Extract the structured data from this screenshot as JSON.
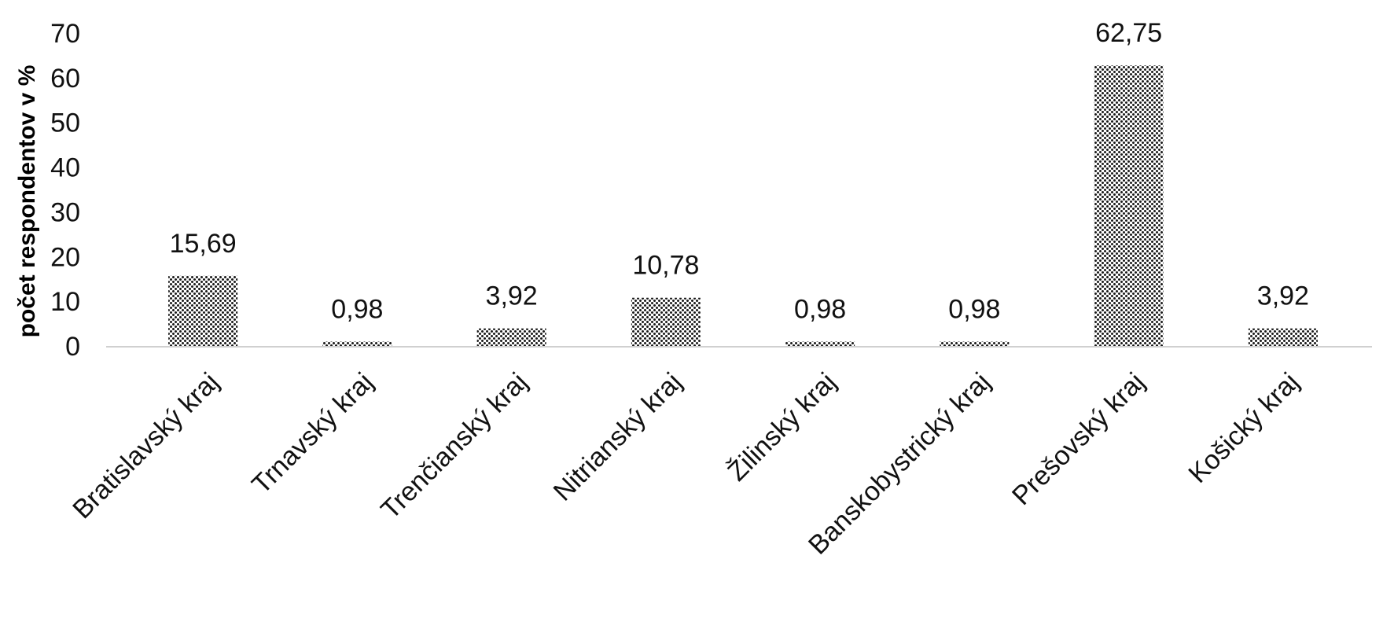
{
  "chart_data": {
    "type": "bar",
    "title": "",
    "xlabel": "",
    "ylabel": "počet respondentov v %",
    "ylim": [
      0,
      70
    ],
    "yticks": [
      0,
      10,
      20,
      30,
      40,
      50,
      60,
      70
    ],
    "grid": false,
    "legend": "none",
    "categories": [
      "Bratislavský kraj",
      "Trnavský kraj",
      "Trenčianský kraj",
      "Nitrianský kraj",
      "Žilinský kraj",
      "Banskobystrický kraj",
      "Prešovský kraj",
      "Košický kraj"
    ],
    "values": [
      15.69,
      0.98,
      3.92,
      10.78,
      0.98,
      0.98,
      62.75,
      3.92
    ],
    "data_labels": [
      "15,69",
      "0,98",
      "3,92",
      "10,78",
      "0,98",
      "0,98",
      "62,75",
      "3,92"
    ],
    "colors": {
      "bar_pattern_fg": "#1a1a1a",
      "bar_pattern_bg": "#ffffff",
      "axis_line": "#d0d0d0"
    }
  }
}
